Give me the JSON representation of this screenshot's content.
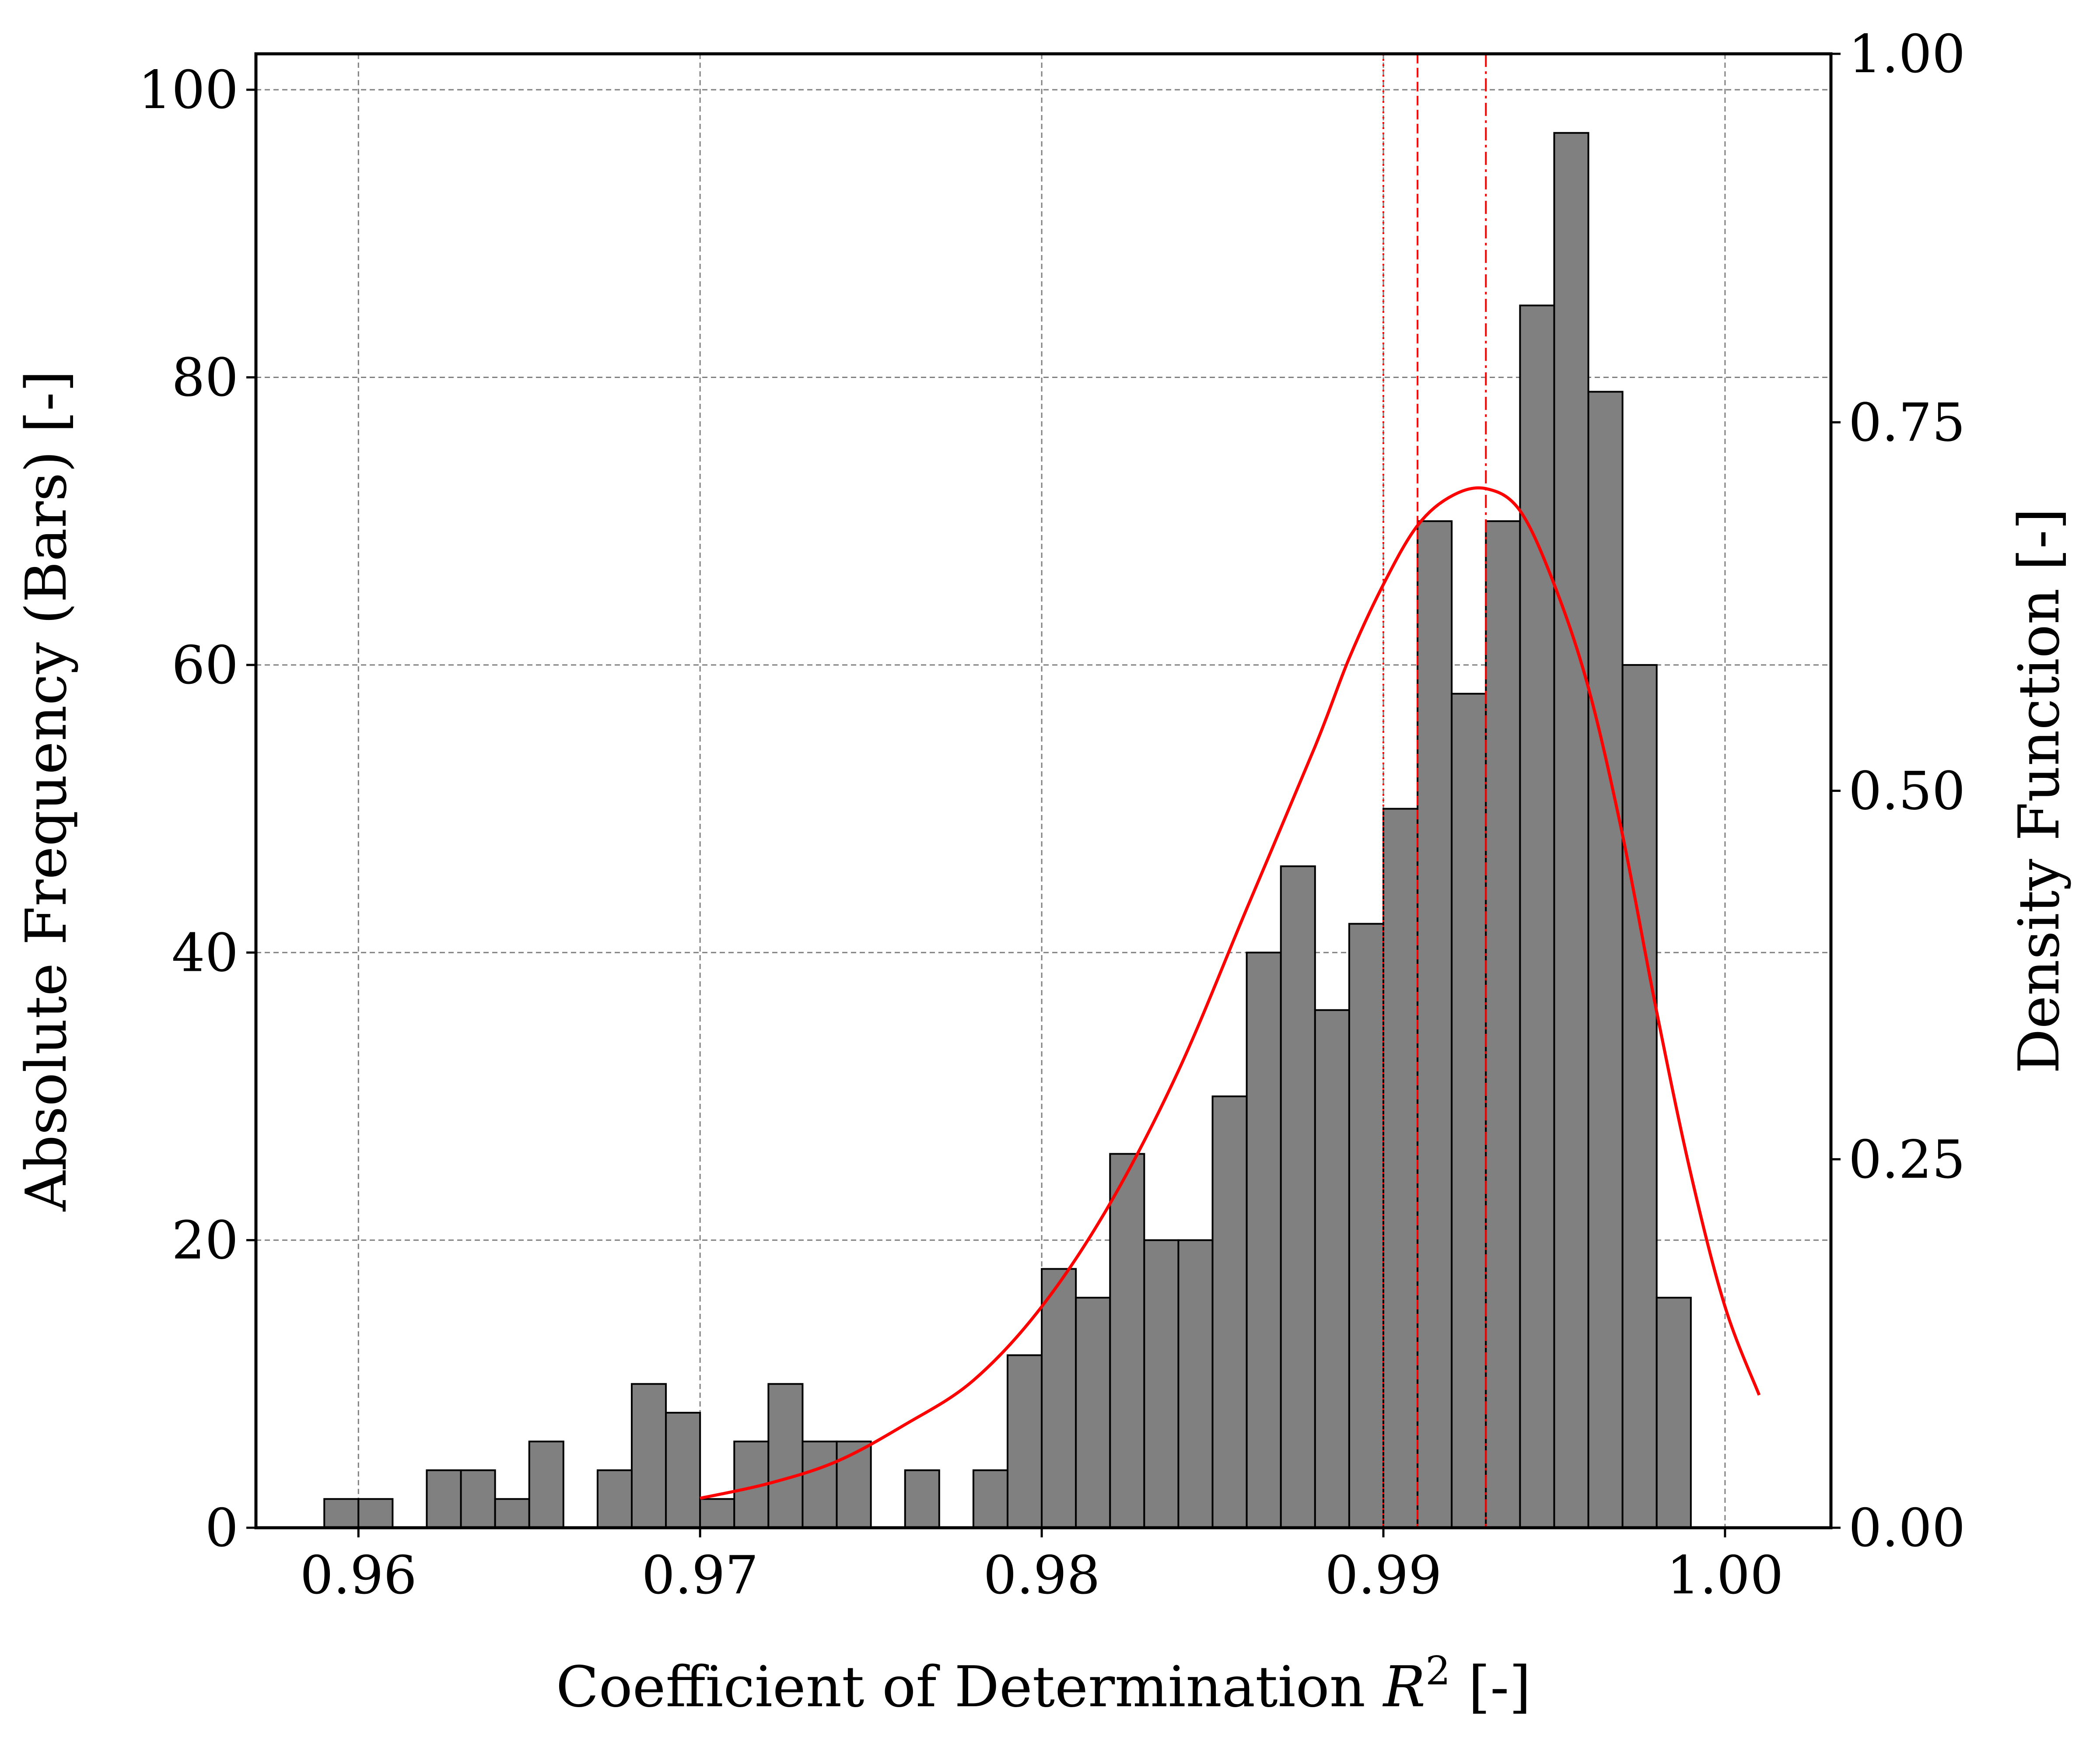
{
  "chart_data": {
    "type": "bar",
    "title": "",
    "xlabel_parts": {
      "pre": "Coefficient of Determination ",
      "var": "R",
      "sup": "2",
      "post": " [-]"
    },
    "ylabel": "Absolute Frequency (Bars) [-]",
    "y2label": "Density Function [-]",
    "xlim": [
      0.957,
      1.0031
    ],
    "ylim": [
      0,
      102.5
    ],
    "y2lim": [
      0,
      1.0
    ],
    "xticks": [
      0.96,
      0.97,
      0.98,
      0.99,
      1.0
    ],
    "xtick_labels": [
      "0.96",
      "0.97",
      "0.98",
      "0.99",
      "1.00"
    ],
    "yticks": [
      0,
      20,
      40,
      60,
      80,
      100
    ],
    "ytick_labels": [
      "0",
      "20",
      "40",
      "60",
      "80",
      "100"
    ],
    "y2ticks": [
      0,
      0.25,
      0.5,
      0.75,
      1.0
    ],
    "y2tick_labels": [
      "0.00",
      "0.25",
      "0.50",
      "0.75",
      "1.00"
    ],
    "grid": true,
    "bin_start": 0.959,
    "bin_width": 0.001,
    "values": [
      2,
      2,
      0,
      4,
      4,
      2,
      6,
      0,
      4,
      10,
      8,
      2,
      6,
      10,
      6,
      6,
      0,
      4,
      0,
      4,
      12,
      18,
      16,
      26,
      20,
      20,
      30,
      40,
      46,
      36,
      42,
      50,
      70,
      58,
      70,
      85,
      97,
      79,
      60,
      16
    ],
    "bar_color": "#808080",
    "density_curve": {
      "color": "#ff0000",
      "x": [
        0.97,
        0.972,
        0.974,
        0.976,
        0.978,
        0.98,
        0.982,
        0.984,
        0.986,
        0.988,
        0.989,
        0.99,
        0.991,
        0.992,
        0.993,
        0.994,
        0.995,
        0.996,
        0.997,
        0.998,
        0.999,
        1.0,
        1.001
      ],
      "y": [
        0.02,
        0.03,
        0.045,
        0.07,
        0.1,
        0.15,
        0.22,
        0.31,
        0.42,
        0.53,
        0.59,
        0.64,
        0.68,
        0.7,
        0.705,
        0.69,
        0.64,
        0.57,
        0.47,
        0.35,
        0.24,
        0.15,
        0.09
      ]
    },
    "vlines": [
      {
        "x": 0.99,
        "style": "dotted",
        "color": "#ff0000"
      },
      {
        "x": 0.991,
        "style": "dashed",
        "color": "#ff0000"
      },
      {
        "x": 0.993,
        "style": "dashdot",
        "color": "#ff0000"
      }
    ]
  }
}
